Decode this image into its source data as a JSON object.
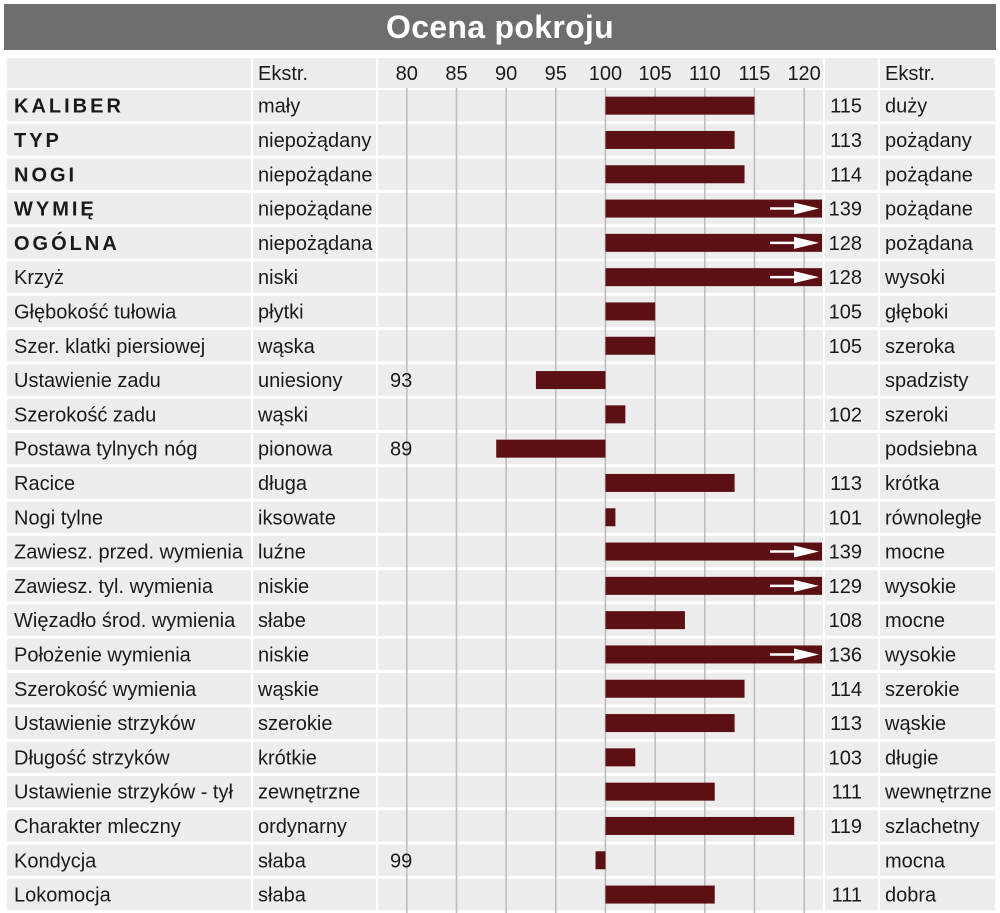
{
  "chart_data": {
    "type": "bar",
    "title": "Ocena pokroju",
    "header_left": "Ekstr.",
    "header_right": "Ekstr.",
    "baseline": 100,
    "xlim": [
      77,
      122
    ],
    "x_ticks": [
      80,
      85,
      90,
      95,
      100,
      105,
      110,
      115,
      120
    ],
    "rows": [
      {
        "trait": "KALIBER",
        "bold": true,
        "low": "mały",
        "high": "duży",
        "value": 115
      },
      {
        "trait": "TYP",
        "bold": true,
        "low": "niepożądany",
        "high": "pożądany",
        "value": 113
      },
      {
        "trait": "NOGI",
        "bold": true,
        "low": "niepożądane",
        "high": "pożądane",
        "value": 114
      },
      {
        "trait": "WYMIĘ",
        "bold": true,
        "low": "niepożądane",
        "high": "pożądane",
        "value": 139
      },
      {
        "trait": "OGÓLNA",
        "bold": true,
        "low": "niepożądana",
        "high": "pożądana",
        "value": 128
      },
      {
        "trait": "Krzyż",
        "bold": false,
        "low": "niski",
        "high": "wysoki",
        "value": 128
      },
      {
        "trait": "Głębokość tułowia",
        "bold": false,
        "low": "płytki",
        "high": "głęboki",
        "value": 105
      },
      {
        "trait": "Szer. klatki piersiowej",
        "bold": false,
        "low": "wąska",
        "high": "szeroka",
        "value": 105
      },
      {
        "trait": "Ustawienie zadu",
        "bold": false,
        "low": "uniesiony",
        "high": "spadzisty",
        "value": 93
      },
      {
        "trait": "Szerokość zadu",
        "bold": false,
        "low": "wąski",
        "high": "szeroki",
        "value": 102
      },
      {
        "trait": "Postawa tylnych nóg",
        "bold": false,
        "low": "pionowa",
        "high": "podsiebna",
        "value": 89
      },
      {
        "trait": "Racice",
        "bold": false,
        "low": "długa",
        "high": "krótka",
        "value": 113
      },
      {
        "trait": "Nogi tylne",
        "bold": false,
        "low": "iksowate",
        "high": "równoległe",
        "value": 101
      },
      {
        "trait": "Zawiesz. przed. wymienia",
        "bold": false,
        "low": "luźne",
        "high": "mocne",
        "value": 139
      },
      {
        "trait": "Zawiesz. tyl. wymienia",
        "bold": false,
        "low": "niskie",
        "high": "wysokie",
        "value": 129
      },
      {
        "trait": "Więzadło środ. wymienia",
        "bold": false,
        "low": "słabe",
        "high": "mocne",
        "value": 108
      },
      {
        "trait": "Położenie wymienia",
        "bold": false,
        "low": "niskie",
        "high": "wysokie",
        "value": 136
      },
      {
        "trait": "Szerokość wymienia",
        "bold": false,
        "low": "wąskie",
        "high": "szerokie",
        "value": 114
      },
      {
        "trait": "Ustawienie strzyków",
        "bold": false,
        "low": "szerokie",
        "high": "wąskie",
        "value": 113
      },
      {
        "trait": "Długość strzyków",
        "bold": false,
        "low": "krótkie",
        "high": "długie",
        "value": 103
      },
      {
        "trait": "Ustawienie strzyków - tył",
        "bold": false,
        "low": "zewnętrzne",
        "high": "wewnętrzne",
        "value": 111
      },
      {
        "trait": "Charakter mleczny",
        "bold": false,
        "low": "ordynarny",
        "high": "szlachetny",
        "value": 119
      },
      {
        "trait": "Kondycja",
        "bold": false,
        "low": "słaba",
        "high": "mocna",
        "value": 99
      },
      {
        "trait": "Lokomocja",
        "bold": false,
        "low": "słaba",
        "high": "dobra",
        "value": 111
      }
    ],
    "grid": true,
    "colors": {
      "bar": "#5c1014",
      "row_shade": "#ededed",
      "header_bg": "#6e6e6e",
      "grid": "#bdbdbd",
      "divider": "#ffffff"
    }
  }
}
